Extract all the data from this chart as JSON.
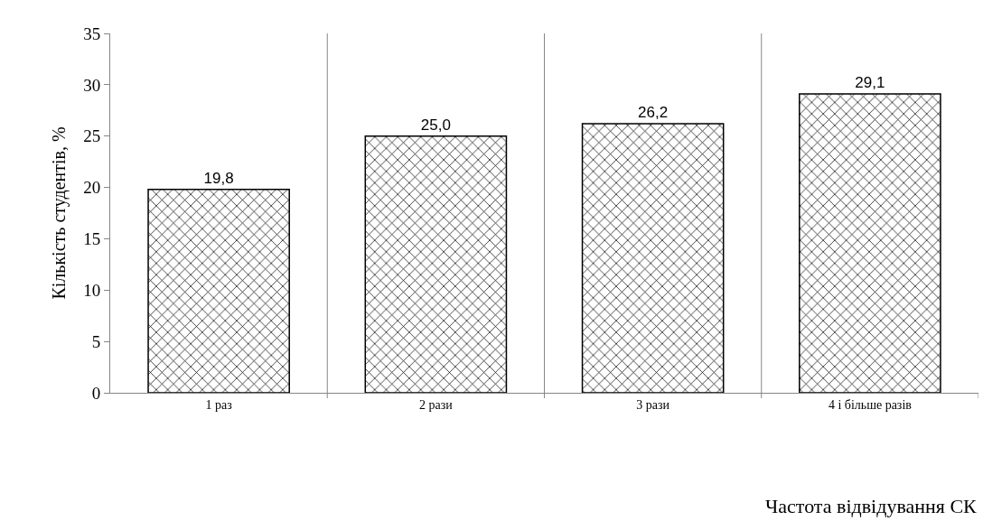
{
  "chart_data": {
    "type": "bar",
    "ylabel": "Кількість студентів, %",
    "xlabel": "Частота відвідування СК",
    "categories": [
      "1 раз",
      "2 рази",
      "3 рази",
      "4 і більше разів"
    ],
    "values": [
      19.8,
      25.0,
      26.2,
      29.1
    ],
    "color": "#000000",
    "value_labels": [
      "19,8",
      "25,0",
      "26,2",
      "29,1"
    ],
    "ylim": [
      0,
      35
    ],
    "yticks": [
      0,
      5,
      10,
      15,
      20,
      25,
      30,
      35
    ],
    "grid": "x",
    "legend": false
  }
}
